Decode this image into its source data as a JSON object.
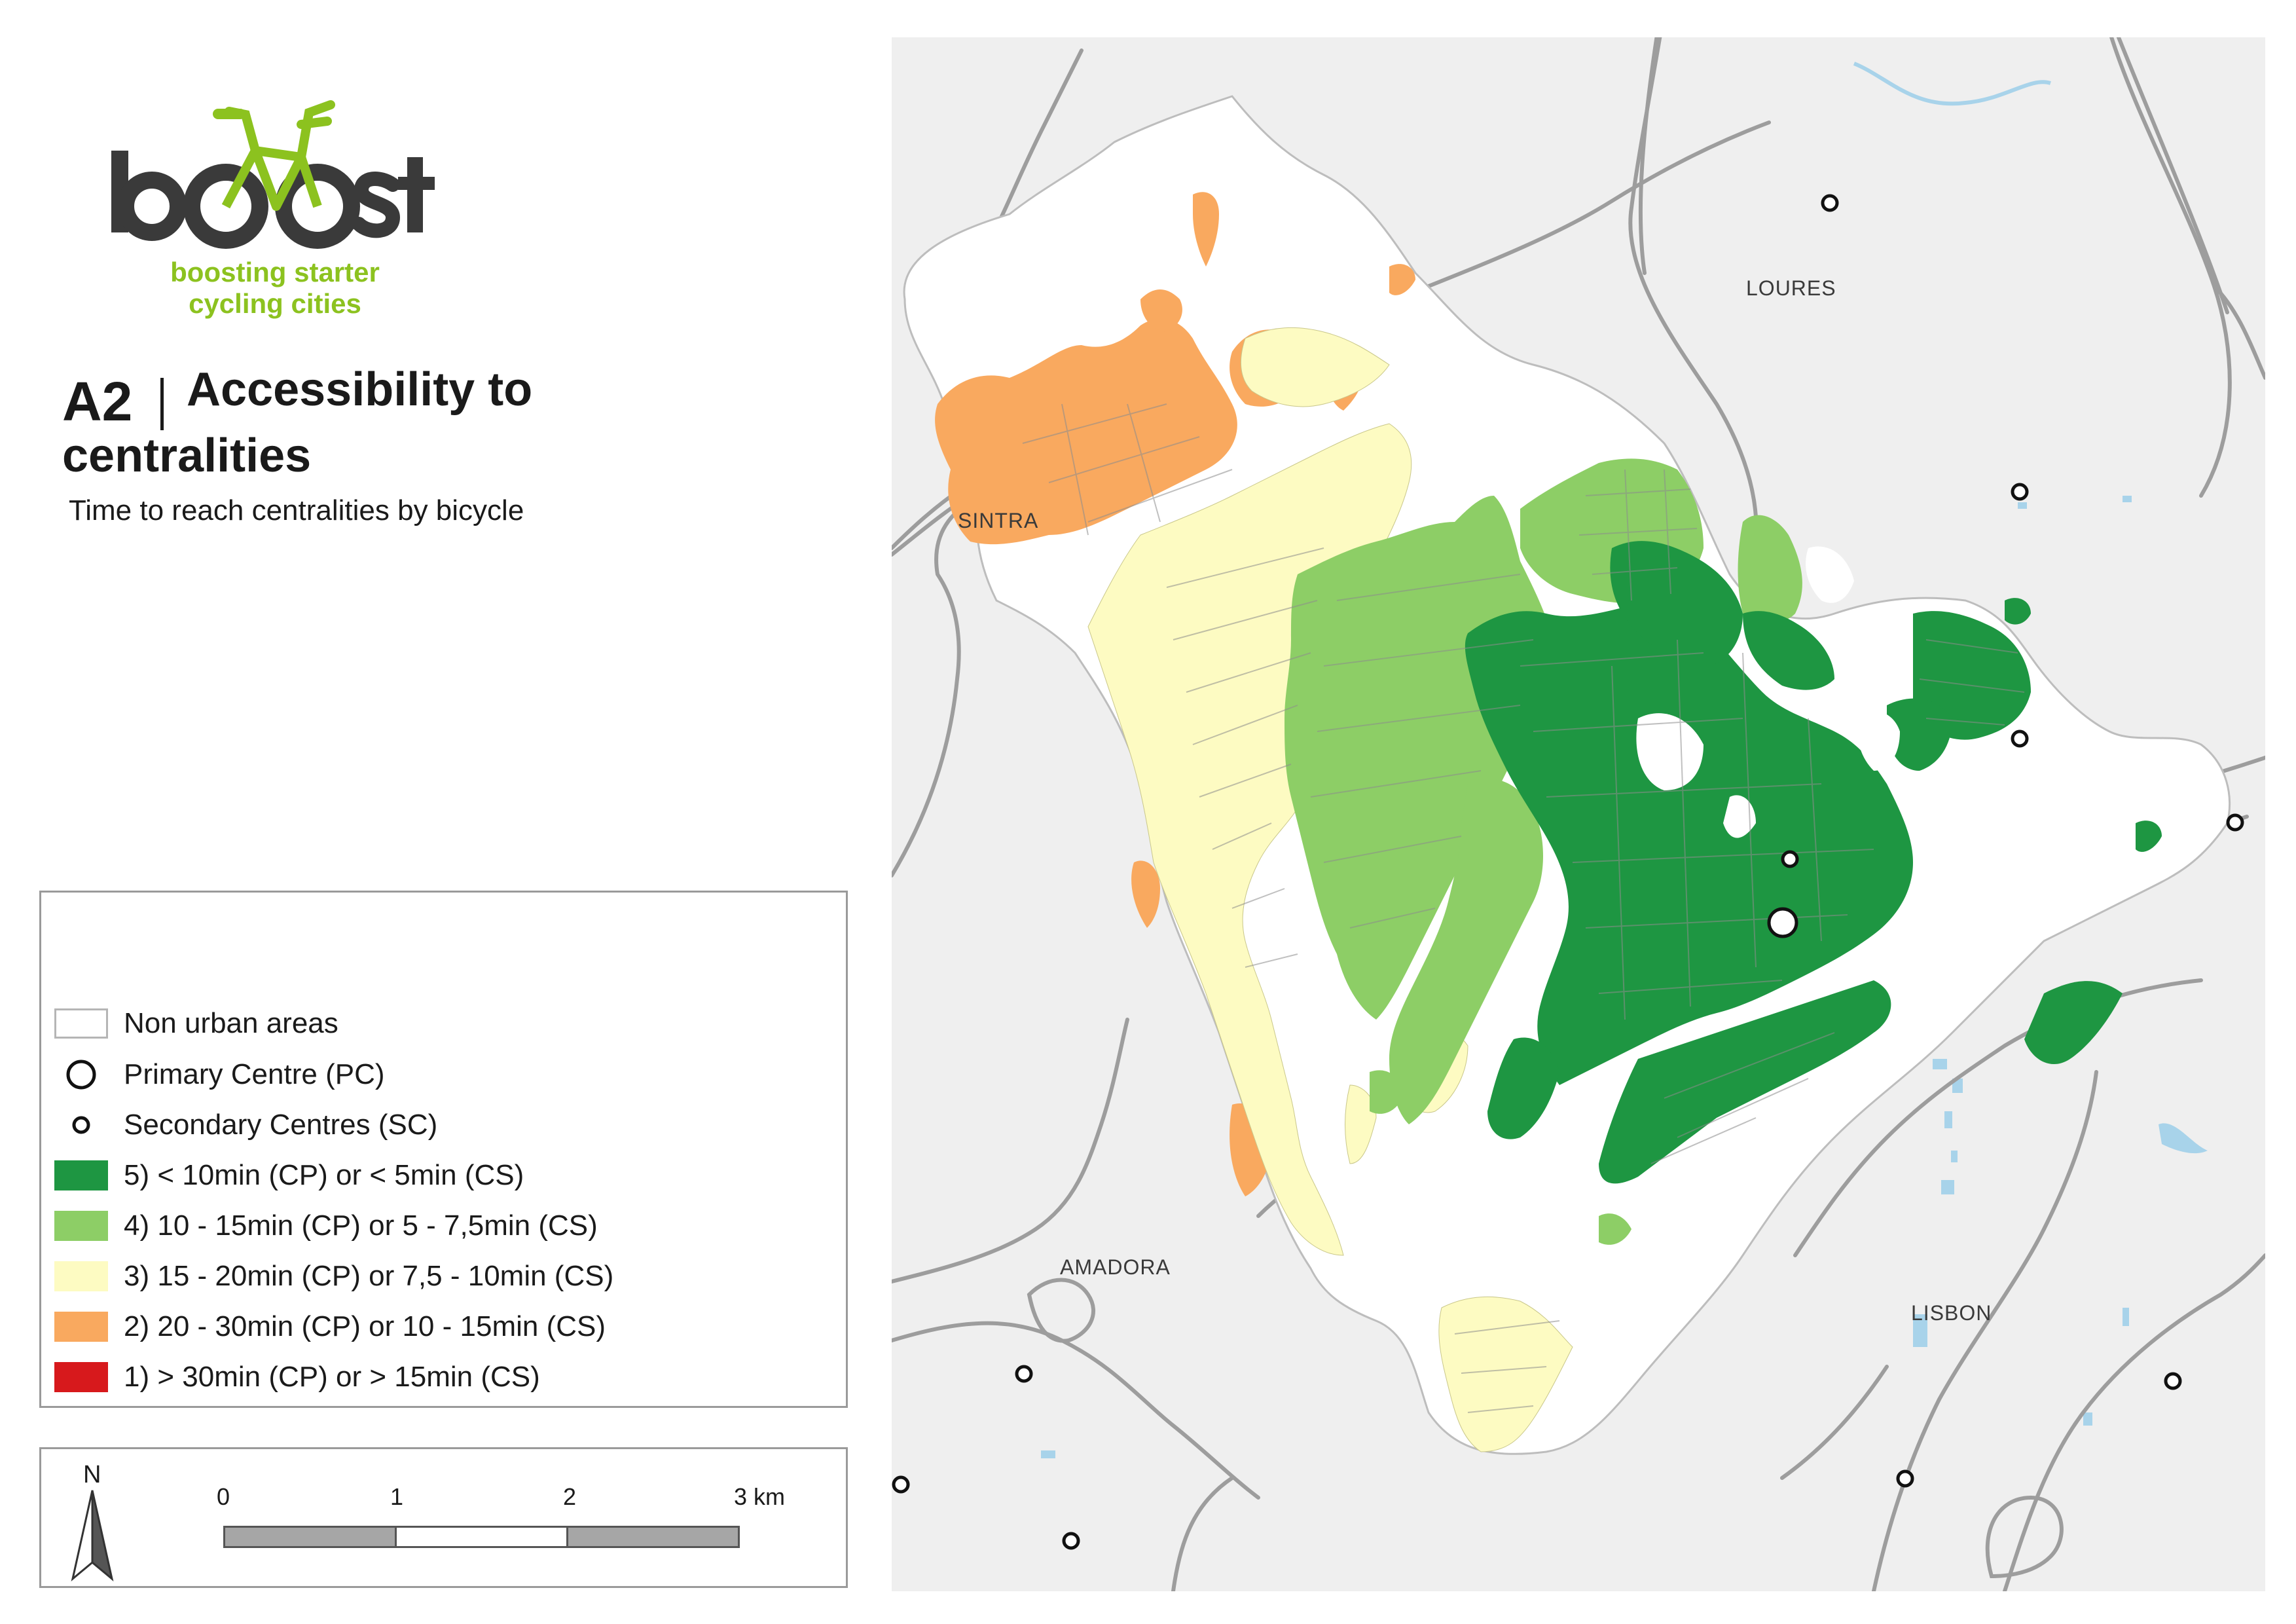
{
  "logo": {
    "wordmark": "boost",
    "tagline_line1": "boosting starter",
    "tagline_line2": "cycling cities",
    "brand_green": "#8cc21f",
    "dark": "#3a3a3a"
  },
  "title": {
    "code": "A2",
    "main_line1": "Accessibility to",
    "main_line2": "centralities",
    "subtitle": "Time to reach centralities by bicycle"
  },
  "legend": {
    "items": [
      {
        "kind": "area",
        "label": "Non urban areas",
        "color": "#ffffff"
      },
      {
        "kind": "pc",
        "label": "Primary Centre (PC)"
      },
      {
        "kind": "sc",
        "label": "Secondary Centres (SC)"
      },
      {
        "kind": "class",
        "label": "5)  < 10min (CP) or < 5min (CS)",
        "color": "#1e9642"
      },
      {
        "kind": "class",
        "label": "4)  10 - 15min (CP) or 5 - 7,5min (CS)",
        "color": "#8dce66"
      },
      {
        "kind": "class",
        "label": "3)  15 - 20min (CP) or 7,5 - 10min (CS)",
        "color": "#fdfbc2"
      },
      {
        "kind": "class",
        "label": "2)  20 - 30min (CP) or 10 - 15min (CS)",
        "color": "#f9a95f"
      },
      {
        "kind": "class",
        "label": "1)  > 30min (CP) or > 15min (CS)",
        "color": "#d7191c"
      }
    ]
  },
  "scalebar": {
    "north_label": "N",
    "ticks": [
      "0",
      "1",
      "2",
      "3 km"
    ]
  },
  "map": {
    "places": {
      "loures": "LOURES",
      "sintra": "SINTRA",
      "amadora": "AMADORA",
      "lisbon": "LISBON"
    },
    "colors": {
      "background": "#efefef",
      "road": "#9d9d9d",
      "water": "#a8d3ea",
      "non_urban": "#ffffff",
      "class5": "#1e9642",
      "class4": "#8dce66",
      "class3": "#fdfbc2",
      "class2": "#f9a95f"
    }
  }
}
